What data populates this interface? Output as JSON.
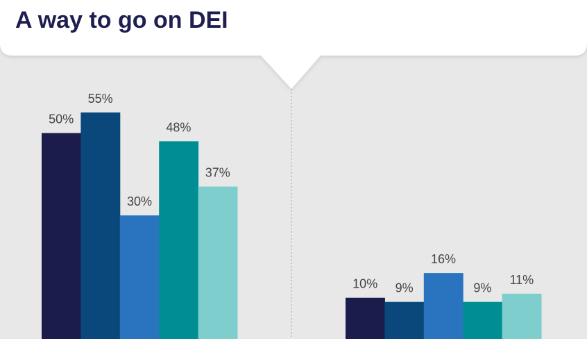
{
  "chart_data": {
    "type": "bar",
    "title": "A way to go on DEI",
    "categories": [
      null,
      null
    ],
    "series": [
      {
        "color": "#1c1c4c",
        "values": [
          50,
          10
        ],
        "value_labels": [
          "50%",
          "10%"
        ]
      },
      {
        "color": "#0a477a",
        "values": [
          55,
          9
        ],
        "value_labels": [
          "55%",
          "9%"
        ]
      },
      {
        "color": "#2a74bf",
        "values": [
          30,
          16
        ],
        "value_labels": [
          "30%",
          "16%"
        ]
      },
      {
        "color": "#008e94",
        "values": [
          48,
          9
        ],
        "value_labels": [
          "48%",
          "9%"
        ]
      },
      {
        "color": "#7ecece",
        "values": [
          37,
          11
        ],
        "value_labels": [
          "37%",
          "11%"
        ]
      }
    ]
  }
}
